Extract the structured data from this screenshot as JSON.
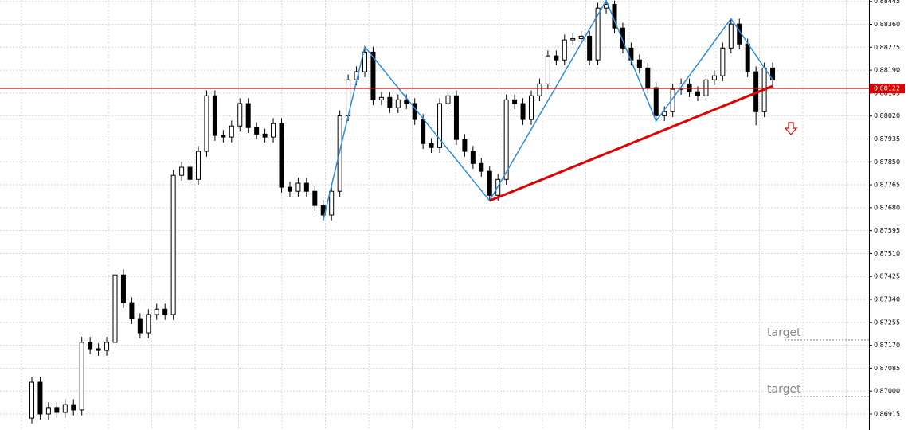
{
  "chart_data": {
    "type": "candlestick",
    "candles": {
      "open": [
        0.869,
        0.87033,
        0.86915,
        0.86939,
        0.86921,
        0.8695,
        0.8693,
        0.87181,
        0.87157,
        0.87151,
        0.87181,
        0.87431,
        0.87328,
        0.87269,
        0.87216,
        0.87284,
        0.87304,
        0.87284,
        0.878,
        0.8783,
        0.87785,
        0.87889,
        0.88095,
        0.87948,
        0.87942,
        0.87983,
        0.88066,
        0.87977,
        0.87953,
        0.87942,
        0.87992,
        0.87756,
        0.87741,
        0.87771,
        0.87741,
        0.87688,
        0.87653,
        0.87741,
        0.88021,
        0.88154,
        0.88184,
        0.88257,
        0.8808,
        0.88089,
        0.88051,
        0.8808,
        0.88066,
        0.88007,
        0.87918,
        0.87903,
        0.88066,
        0.88095,
        0.87933,
        0.87889,
        0.87844,
        0.87815,
        0.87726,
        0.87785,
        0.8808,
        0.88066,
        0.88007,
        0.88095,
        0.88139,
        0.88243,
        0.88228,
        0.88302,
        0.88307,
        0.88316,
        0.88228,
        0.8842,
        0.88434,
        0.88346,
        0.88272,
        0.88228,
        0.88198,
        0.88125,
        0.88021,
        0.88036,
        0.88119,
        0.88139,
        0.8811,
        0.88095,
        0.88154,
        0.88169,
        0.88272,
        0.88361,
        0.88287,
        0.88184,
        0.88036,
        0.88198
      ],
      "high": [
        0.87053,
        0.87053,
        0.86959,
        0.86959,
        0.8697,
        0.8697,
        0.87201,
        0.87201,
        0.87177,
        0.87201,
        0.87451,
        0.87451,
        0.87348,
        0.87289,
        0.87304,
        0.87324,
        0.87324,
        0.8782,
        0.8785,
        0.8785,
        0.87909,
        0.88115,
        0.88115,
        0.87968,
        0.88003,
        0.88086,
        0.88086,
        0.87997,
        0.87973,
        0.88012,
        0.88012,
        0.87776,
        0.87791,
        0.87791,
        0.87761,
        0.87708,
        0.87761,
        0.88041,
        0.88174,
        0.88204,
        0.88277,
        0.88277,
        0.88109,
        0.88109,
        0.881,
        0.881,
        0.88086,
        0.88027,
        0.87938,
        0.88086,
        0.88115,
        0.88115,
        0.87953,
        0.87909,
        0.87864,
        0.87835,
        0.87805,
        0.881,
        0.881,
        0.88086,
        0.88115,
        0.88159,
        0.88263,
        0.88263,
        0.88322,
        0.88327,
        0.88336,
        0.88336,
        0.8844,
        0.88448,
        0.88448,
        0.88366,
        0.88292,
        0.88248,
        0.88218,
        0.88145,
        0.88056,
        0.88139,
        0.88159,
        0.88159,
        0.8813,
        0.88174,
        0.88189,
        0.88292,
        0.88381,
        0.88381,
        0.88307,
        0.88204,
        0.88218,
        0.88218
      ],
      "low": [
        0.8688,
        0.86895,
        0.86895,
        0.86901,
        0.86901,
        0.8691,
        0.8691,
        0.87137,
        0.87131,
        0.87131,
        0.87161,
        0.87308,
        0.87249,
        0.87196,
        0.87196,
        0.87264,
        0.87264,
        0.87264,
        0.8778,
        0.87765,
        0.87765,
        0.87869,
        0.87928,
        0.87922,
        0.87922,
        0.87963,
        0.87957,
        0.87933,
        0.87922,
        0.87922,
        0.87736,
        0.87721,
        0.87721,
        0.87721,
        0.87668,
        0.87633,
        0.87633,
        0.87721,
        0.88001,
        0.88134,
        0.88164,
        0.8806,
        0.8806,
        0.88031,
        0.88031,
        0.88046,
        0.87987,
        0.87898,
        0.87883,
        0.87883,
        0.88046,
        0.87913,
        0.87869,
        0.87824,
        0.87795,
        0.87706,
        0.87706,
        0.87765,
        0.88046,
        0.87987,
        0.87987,
        0.88075,
        0.88119,
        0.88208,
        0.88208,
        0.88282,
        0.88287,
        0.88208,
        0.88208,
        0.884,
        0.88326,
        0.88252,
        0.88208,
        0.88178,
        0.88105,
        0.88001,
        0.88001,
        0.88016,
        0.88099,
        0.8809,
        0.88075,
        0.88075,
        0.88134,
        0.88149,
        0.88252,
        0.88267,
        0.88164,
        0.87986,
        0.88016,
        0.88134
      ],
      "close": [
        0.87033,
        0.86915,
        0.86939,
        0.86921,
        0.8695,
        0.8693,
        0.87181,
        0.87157,
        0.87151,
        0.87181,
        0.87431,
        0.87328,
        0.87269,
        0.87216,
        0.87284,
        0.87304,
        0.87284,
        0.878,
        0.8783,
        0.87785,
        0.87889,
        0.88095,
        0.87948,
        0.87942,
        0.87983,
        0.88066,
        0.87977,
        0.87953,
        0.87942,
        0.87992,
        0.87756,
        0.87741,
        0.87771,
        0.87741,
        0.87688,
        0.87653,
        0.87741,
        0.88021,
        0.88154,
        0.88184,
        0.88257,
        0.8808,
        0.88089,
        0.88051,
        0.8808,
        0.88066,
        0.88007,
        0.87918,
        0.87903,
        0.88066,
        0.88095,
        0.87933,
        0.87889,
        0.87844,
        0.87815,
        0.87726,
        0.87785,
        0.8808,
        0.88066,
        0.88007,
        0.88095,
        0.88139,
        0.88243,
        0.88228,
        0.88302,
        0.88307,
        0.88316,
        0.88228,
        0.8842,
        0.88434,
        0.88346,
        0.88272,
        0.88228,
        0.88198,
        0.88125,
        0.88021,
        0.88036,
        0.88119,
        0.88139,
        0.8811,
        0.88095,
        0.88154,
        0.88169,
        0.88272,
        0.88361,
        0.88287,
        0.88184,
        0.88036,
        0.88198,
        0.88154
      ]
    },
    "bull_color": "#ffffff",
    "bear_color": "#000000",
    "ylim": [
      0.86856,
      0.8845
    ],
    "yticks": [
      0.88445,
      {
        "value": 0.8836,
        "label": "0.88360"
      },
      0.88275,
      {
        "value": 0.8819,
        "label": "0.88190"
      },
      0.88105,
      {
        "value": 0.8802,
        "label": "0.88020"
      },
      0.87935,
      {
        "value": 0.8785,
        "label": "0.87850"
      },
      0.87765,
      {
        "value": 0.8768,
        "label": "0.87680"
      },
      0.87595,
      {
        "value": 0.8751,
        "label": "0.87510"
      },
      0.87425,
      {
        "value": 0.8734,
        "label": "0.87340"
      },
      0.87255,
      {
        "value": 0.8717,
        "label": "0.87170"
      },
      0.87085,
      {
        "value": 0.87,
        "label": "0.87000"
      },
      0.86915
    ],
    "grid": true,
    "price_line": {
      "value": 0.88122,
      "color": "#e00000"
    },
    "zigzag": {
      "color": "#2b8ce6",
      "x": [
        35,
        40,
        55,
        69,
        75,
        84,
        89
      ],
      "values": [
        0.87633,
        0.88277,
        0.87706,
        0.88448,
        0.88001,
        0.88381,
        0.88154
      ]
    },
    "trendline": {
      "color": "#e00000",
      "x": [
        55,
        89
      ],
      "values": [
        0.87706,
        0.88131
      ]
    },
    "targets": [
      {
        "label": "target",
        "value": 0.8719
      },
      {
        "label": "target",
        "value": 0.8698
      }
    ]
  }
}
